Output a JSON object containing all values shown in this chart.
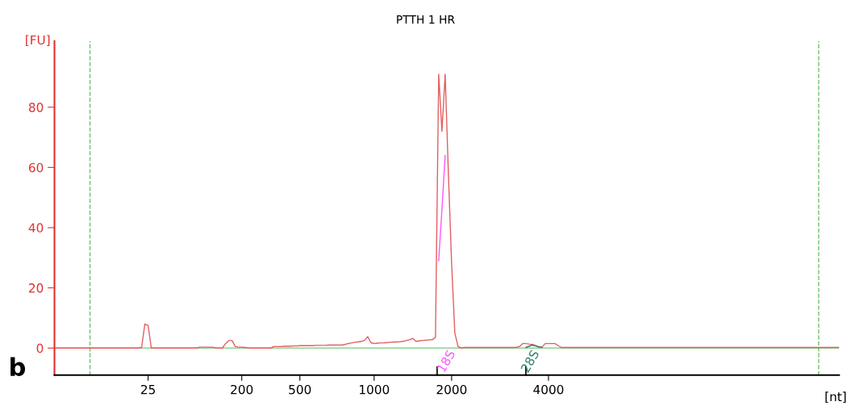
{
  "chart_data": {
    "type": "line",
    "title": "PTTH 1 HR",
    "ylabel": "[FU]",
    "xlabel": "[nt]",
    "ylim": [
      -9,
      102
    ],
    "yticks": [
      0,
      20,
      40,
      60,
      80
    ],
    "grid": false,
    "legend": false,
    "marker": "none",
    "line_style": "solid",
    "categories": [
      null,
      null,
      null,
      null,
      null,
      null,
      null,
      null,
      null,
      null,
      null,
      null,
      null,
      null,
      null,
      null,
      null,
      null,
      null,
      null,
      null,
      null,
      null,
      null,
      null,
      null,
      null,
      null,
      null,
      "25",
      null,
      null,
      null,
      null,
      null,
      null,
      null,
      null,
      null,
      null,
      null,
      null,
      null,
      null,
      null,
      null,
      null,
      null,
      null,
      null,
      null,
      null,
      null,
      null,
      null,
      null,
      null,
      null,
      "200",
      null,
      null,
      null,
      null,
      null,
      null,
      null,
      null,
      null,
      null,
      null,
      null,
      null,
      null,
      null,
      null,
      null,
      "500",
      null,
      null,
      null,
      null,
      null,
      null,
      null,
      null,
      null,
      null,
      null,
      null,
      null,
      null,
      null,
      null,
      null,
      null,
      null,
      null,
      null,
      null,
      "1000",
      null,
      null,
      null,
      null,
      null,
      null,
      null,
      null,
      null,
      null,
      null,
      null,
      null,
      null,
      null,
      null,
      null,
      null,
      null,
      null,
      null,
      null,
      null,
      "2000",
      null,
      null,
      null,
      null,
      null,
      null,
      null,
      null,
      null,
      null,
      null,
      null,
      null,
      null,
      null,
      null,
      null,
      null,
      null,
      null,
      null,
      null,
      null,
      null,
      null,
      null,
      null,
      null,
      null,
      "4000",
      null,
      null,
      null,
      null,
      null,
      null,
      null,
      null,
      null,
      null,
      null,
      null,
      null,
      null,
      null,
      null,
      null,
      null,
      null,
      null,
      null,
      null,
      null,
      null,
      null,
      null,
      null,
      null,
      null,
      null,
      null,
      null,
      null,
      null,
      null,
      null,
      null,
      null,
      null,
      null,
      null,
      null,
      null,
      null,
      null,
      null,
      null,
      null,
      null,
      null,
      null,
      null,
      null,
      null,
      null,
      null,
      null,
      null,
      null,
      null,
      null,
      null,
      null,
      null,
      null,
      null,
      null,
      null,
      null,
      null,
      null,
      null,
      null,
      null,
      null,
      null,
      null,
      null,
      null,
      null,
      null,
      null,
      null,
      null,
      null,
      null,
      null,
      null,
      null,
      null
    ],
    "series": [
      {
        "color": "#e06060",
        "values": [
          0,
          0,
          0,
          0,
          0,
          0,
          0,
          0,
          0,
          0,
          0,
          0,
          0,
          0,
          0,
          0,
          0,
          0,
          0,
          0,
          0,
          0,
          0,
          0,
          0,
          0,
          0,
          0.2,
          8,
          7.5,
          0,
          0,
          0,
          0,
          0,
          0,
          0,
          0,
          0,
          0,
          0,
          0,
          0,
          0,
          0,
          0.3,
          0.3,
          0.3,
          0.3,
          0.3,
          0,
          0,
          0,
          1.5,
          2.5,
          2.5,
          0.5,
          0.3,
          0.3,
          0.2,
          0,
          0,
          0,
          0,
          0,
          0,
          0,
          0,
          0.5,
          0.5,
          0.5,
          0.6,
          0.6,
          0.6,
          0.7,
          0.7,
          0.8,
          0.8,
          0.8,
          0.8,
          0.8,
          0.9,
          0.9,
          0.9,
          0.9,
          1.0,
          1.0,
          1.0,
          1.0,
          1.0,
          1.2,
          1.5,
          1.7,
          1.9,
          2.0,
          2.2,
          2.5,
          3.8,
          1.8,
          1.5,
          1.6,
          1.7,
          1.7,
          1.8,
          1.9,
          2.0,
          2.0,
          2.1,
          2.2,
          2.5,
          2.8,
          3.2,
          2.2,
          2.4,
          2.5,
          2.6,
          2.7,
          2.8,
          3.5,
          91,
          72,
          91,
          58,
          28,
          5,
          0.5,
          0,
          0.2,
          0.2,
          0.2,
          0.2,
          0.2,
          0.2,
          0.2,
          0.2,
          0.2,
          0.2,
          0.2,
          0.2,
          0.2,
          0.2,
          0.2,
          0.2,
          0.2,
          0.5,
          1.5,
          1.5,
          1.3,
          1.2,
          0.8,
          0.4,
          0.3,
          1.5,
          1.5,
          1.5,
          1.5,
          0.8,
          0.2,
          0.2,
          0.2,
          0.2,
          0.2,
          0.2,
          0.2,
          0.2,
          0.2,
          0.2,
          0.2,
          0.2,
          0.2,
          0.2,
          0.2,
          0.2,
          0.2,
          0.2,
          0.2,
          0.2,
          0.2,
          0.2,
          0.2,
          0.2,
          0.2,
          0.2,
          0.2,
          0.2,
          0.2,
          0.2,
          0.2,
          0.2,
          0.2,
          0.2,
          0.2,
          0.2,
          0.2,
          0.2,
          0.2,
          0.2,
          0.2,
          0.2,
          0.2,
          0.2,
          0.2,
          0.2,
          0.2,
          0.2,
          0.2,
          0.2,
          0.2,
          0.2,
          0.2,
          0.2,
          0.2,
          0.2,
          0.2,
          0.2,
          0.2,
          0.2,
          0.2,
          0.2,
          0.2,
          0.2,
          0.2,
          0.2,
          0.2,
          0.2,
          0.2,
          0.2,
          0.2,
          0.2,
          0.2,
          0.2,
          0.2,
          0.2,
          0.2,
          0.2,
          0.2,
          0.2,
          0.2,
          0.2,
          0.2,
          0.2,
          0.2,
          0.2,
          0.2
        ]
      },
      {
        "color": "#ff55ff",
        "values": [
          null,
          null,
          null,
          null,
          null,
          null,
          null,
          null,
          null,
          null,
          null,
          null,
          null,
          null,
          null,
          null,
          null,
          null,
          null,
          null,
          null,
          null,
          null,
          null,
          null,
          null,
          null,
          null,
          null,
          null,
          null,
          null,
          null,
          null,
          null,
          null,
          null,
          null,
          null,
          null,
          null,
          null,
          null,
          null,
          null,
          null,
          null,
          null,
          null,
          null,
          null,
          null,
          null,
          null,
          null,
          null,
          null,
          null,
          null,
          null,
          null,
          null,
          null,
          null,
          null,
          null,
          null,
          null,
          null,
          null,
          null,
          null,
          null,
          null,
          null,
          null,
          null,
          null,
          null,
          null,
          null,
          null,
          null,
          null,
          null,
          null,
          null,
          null,
          null,
          null,
          null,
          null,
          null,
          null,
          null,
          null,
          null,
          null,
          null,
          null,
          null,
          null,
          null,
          null,
          null,
          null,
          null,
          null,
          null,
          null,
          null,
          null,
          null,
          null,
          null,
          null,
          null,
          null,
          null,
          29,
          46,
          64,
          null,
          null,
          null,
          null,
          null,
          null,
          null,
          null,
          null,
          null,
          null,
          null,
          null,
          null,
          null,
          null,
          null,
          null,
          null,
          null,
          null,
          null,
          null,
          null,
          null,
          null,
          null,
          null,
          null,
          null,
          null,
          null,
          null,
          null,
          null,
          null,
          null,
          null,
          null,
          null,
          null,
          null,
          null,
          null,
          null,
          null,
          null,
          null,
          null,
          null,
          null,
          null,
          null,
          null,
          null,
          null,
          null,
          null,
          null,
          null,
          null,
          null,
          null,
          null,
          null,
          null,
          null,
          null,
          null,
          null,
          null,
          null,
          null,
          null,
          null,
          null,
          null,
          null,
          null,
          null,
          null,
          null,
          null,
          null,
          null,
          null,
          null,
          null,
          null,
          null,
          null,
          null,
          null,
          null,
          null,
          null,
          null,
          null,
          null,
          null,
          null,
          null,
          null,
          null,
          null,
          null,
          null,
          null,
          null,
          null,
          null,
          null,
          null,
          null,
          null,
          null,
          null,
          null,
          null,
          null,
          null,
          null
        ]
      },
      {
        "color": "#2f8070",
        "values": [
          null,
          null,
          null,
          null,
          null,
          null,
          null,
          null,
          null,
          null,
          null,
          null,
          null,
          null,
          null,
          null,
          null,
          null,
          null,
          null,
          null,
          null,
          null,
          null,
          null,
          null,
          null,
          null,
          null,
          null,
          null,
          null,
          null,
          null,
          null,
          null,
          null,
          null,
          null,
          null,
          null,
          null,
          null,
          null,
          null,
          null,
          null,
          null,
          null,
          null,
          null,
          null,
          null,
          null,
          null,
          null,
          null,
          null,
          null,
          null,
          null,
          null,
          null,
          null,
          null,
          null,
          null,
          null,
          null,
          null,
          null,
          null,
          null,
          null,
          null,
          null,
          null,
          null,
          null,
          null,
          null,
          null,
          null,
          null,
          null,
          null,
          null,
          null,
          null,
          null,
          null,
          null,
          null,
          null,
          null,
          null,
          null,
          null,
          null,
          null,
          null,
          null,
          null,
          null,
          null,
          null,
          null,
          null,
          null,
          null,
          null,
          null,
          null,
          null,
          null,
          null,
          null,
          null,
          null,
          null,
          null,
          null,
          null,
          null,
          null,
          null,
          null,
          null,
          null,
          null,
          null,
          null,
          null,
          null,
          null,
          null,
          null,
          null,
          null,
          null,
          null,
          null,
          null,
          null,
          null,
          null,
          0.2,
          0.6,
          1.0,
          0.7,
          0.4,
          0.2,
          null,
          null,
          null,
          null,
          null,
          null,
          null,
          null,
          null,
          null,
          null,
          null,
          null,
          null,
          null,
          null,
          null,
          null,
          null,
          null,
          null,
          null,
          null,
          null,
          null,
          null,
          null,
          null,
          null,
          null,
          null,
          null,
          null,
          null,
          null,
          null,
          null,
          null,
          null,
          null,
          null,
          null,
          null,
          null,
          null,
          null,
          null,
          null,
          null,
          null,
          null,
          null,
          null,
          null,
          null,
          null,
          null,
          null,
          null,
          null,
          null,
          null,
          null,
          null,
          null,
          null,
          null,
          null,
          null,
          null,
          null,
          null,
          null,
          null,
          null,
          null,
          null,
          null,
          null,
          null,
          null,
          null,
          null,
          null,
          null,
          null,
          null,
          null,
          null,
          null,
          null,
          null
        ]
      }
    ],
    "ref_lines": [
      {
        "axis": "y",
        "value": 0,
        "color": "#90d090",
        "line_style": "solid"
      }
    ],
    "annotations": [
      "b",
      "18S",
      "28S"
    ]
  }
}
